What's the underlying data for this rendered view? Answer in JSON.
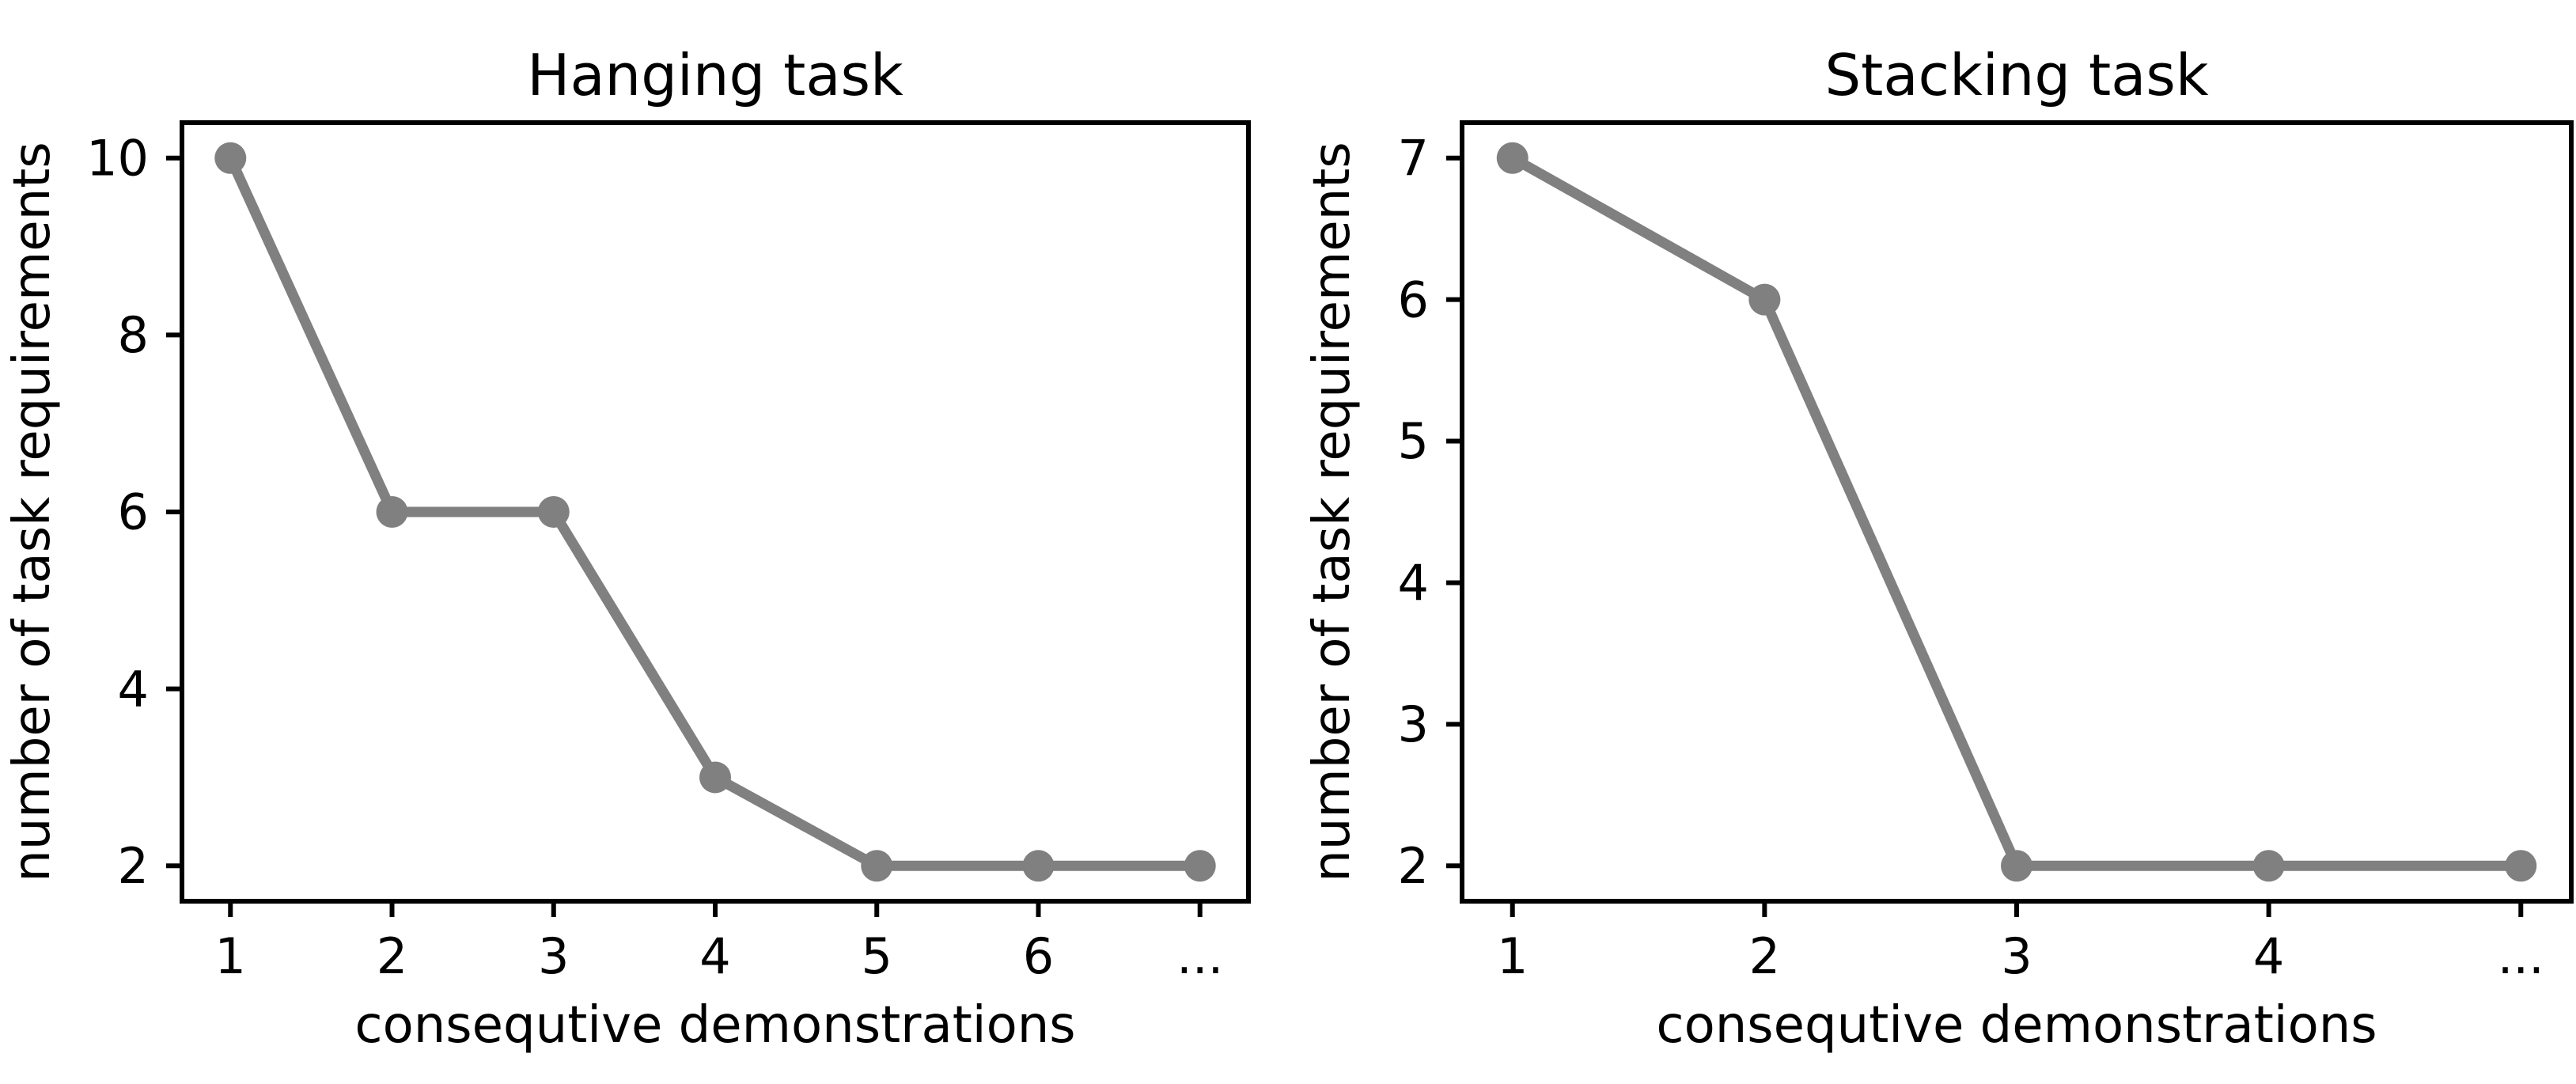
{
  "figure": {
    "background": "#ffffff",
    "line_color": "#808080",
    "marker_color": "#808080",
    "axis_color": "#000000",
    "marker_shape": "circle"
  },
  "chart_data": [
    {
      "type": "line",
      "title": "Hanging task",
      "xlabel": "consequtive demonstrations",
      "ylabel": "number of task requirements",
      "x_tick_labels": [
        "1",
        "2",
        "3",
        "4",
        "5",
        "6",
        "..."
      ],
      "x": [
        1,
        2,
        3,
        4,
        5,
        6,
        7
      ],
      "values": [
        10,
        6,
        6,
        3,
        2,
        2,
        2
      ],
      "yticks": [
        2,
        4,
        6,
        8,
        10
      ],
      "xlim": [
        0.7,
        7.3
      ],
      "ylim": [
        1.6,
        10.4
      ],
      "grid": false,
      "legend": "none"
    },
    {
      "type": "line",
      "title": "Stacking task",
      "xlabel": "consequtive demonstrations",
      "ylabel": "number of task requirements",
      "x_tick_labels": [
        "1",
        "2",
        "3",
        "4",
        "..."
      ],
      "x": [
        1,
        2,
        3,
        4,
        5
      ],
      "values": [
        7,
        6,
        2,
        2,
        2
      ],
      "yticks": [
        2,
        3,
        4,
        5,
        6,
        7
      ],
      "xlim": [
        0.8,
        5.2
      ],
      "ylim": [
        1.75,
        7.25
      ],
      "grid": false,
      "legend": "none"
    }
  ]
}
